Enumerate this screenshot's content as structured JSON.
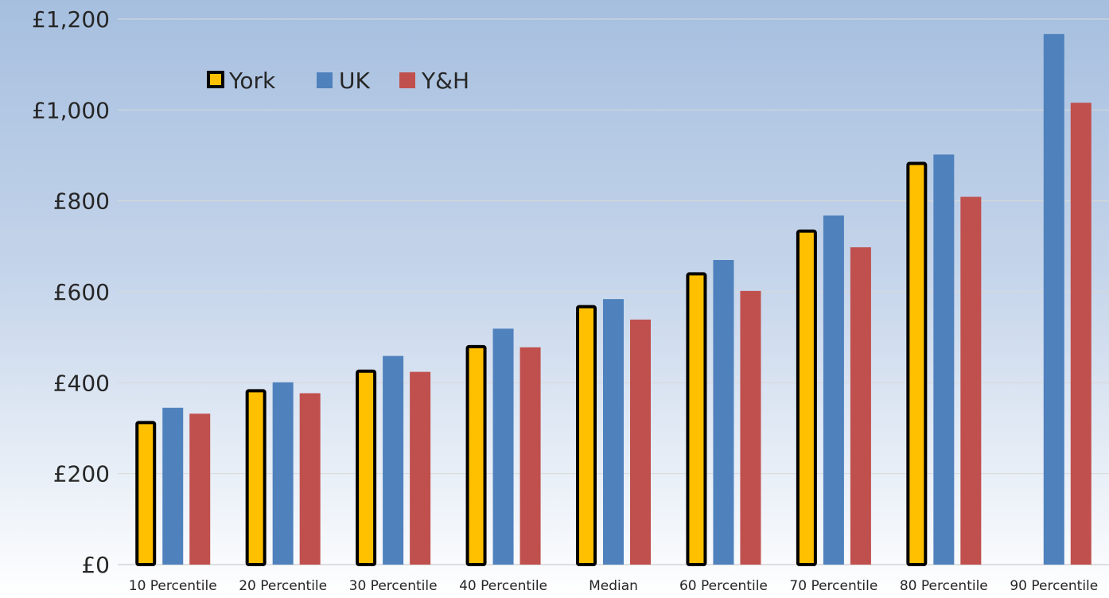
{
  "chart_data": {
    "type": "bar",
    "categories": [
      "10 Percentile",
      "20 Percentile",
      "30 Percentile",
      "40 Percentile",
      "Median",
      "60 Percentile",
      "70 Percentile",
      "80 Percentile",
      "90 Percentile"
    ],
    "series": [
      {
        "name": "York",
        "color": "#ffc000",
        "outline": "#000000",
        "values": [
          316,
          386,
          429,
          483,
          571,
          643,
          737,
          886,
          null
        ]
      },
      {
        "name": "UK",
        "color": "#4f81bd",
        "values": [
          345,
          401,
          459,
          519,
          584,
          670,
          768,
          902,
          1167
        ]
      },
      {
        "name": "Y&H",
        "color": "#c0504d",
        "values": [
          332,
          377,
          424,
          478,
          539,
          602,
          698,
          809,
          1016
        ]
      }
    ],
    "yaxis": {
      "min": 0,
      "max": 1200,
      "step": 200,
      "tick_labels": [
        "£0",
        "£200",
        "£400",
        "£600",
        "£800",
        "£1,000",
        "£1,200"
      ]
    },
    "grid": true,
    "legend_position": "top-left",
    "title": "",
    "xlabel": "",
    "ylabel": ""
  }
}
